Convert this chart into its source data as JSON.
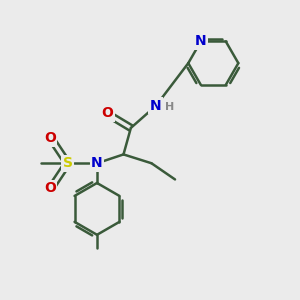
{
  "background_color": "#ebebeb",
  "bond_color": "#3a5a3a",
  "bond_width": 1.8,
  "atom_colors": {
    "N": "#0000cc",
    "O": "#cc0000",
    "S": "#cccc00",
    "H": "#888888"
  },
  "font_size": 10,
  "figsize": [
    3.0,
    3.0
  ],
  "dpi": 100
}
